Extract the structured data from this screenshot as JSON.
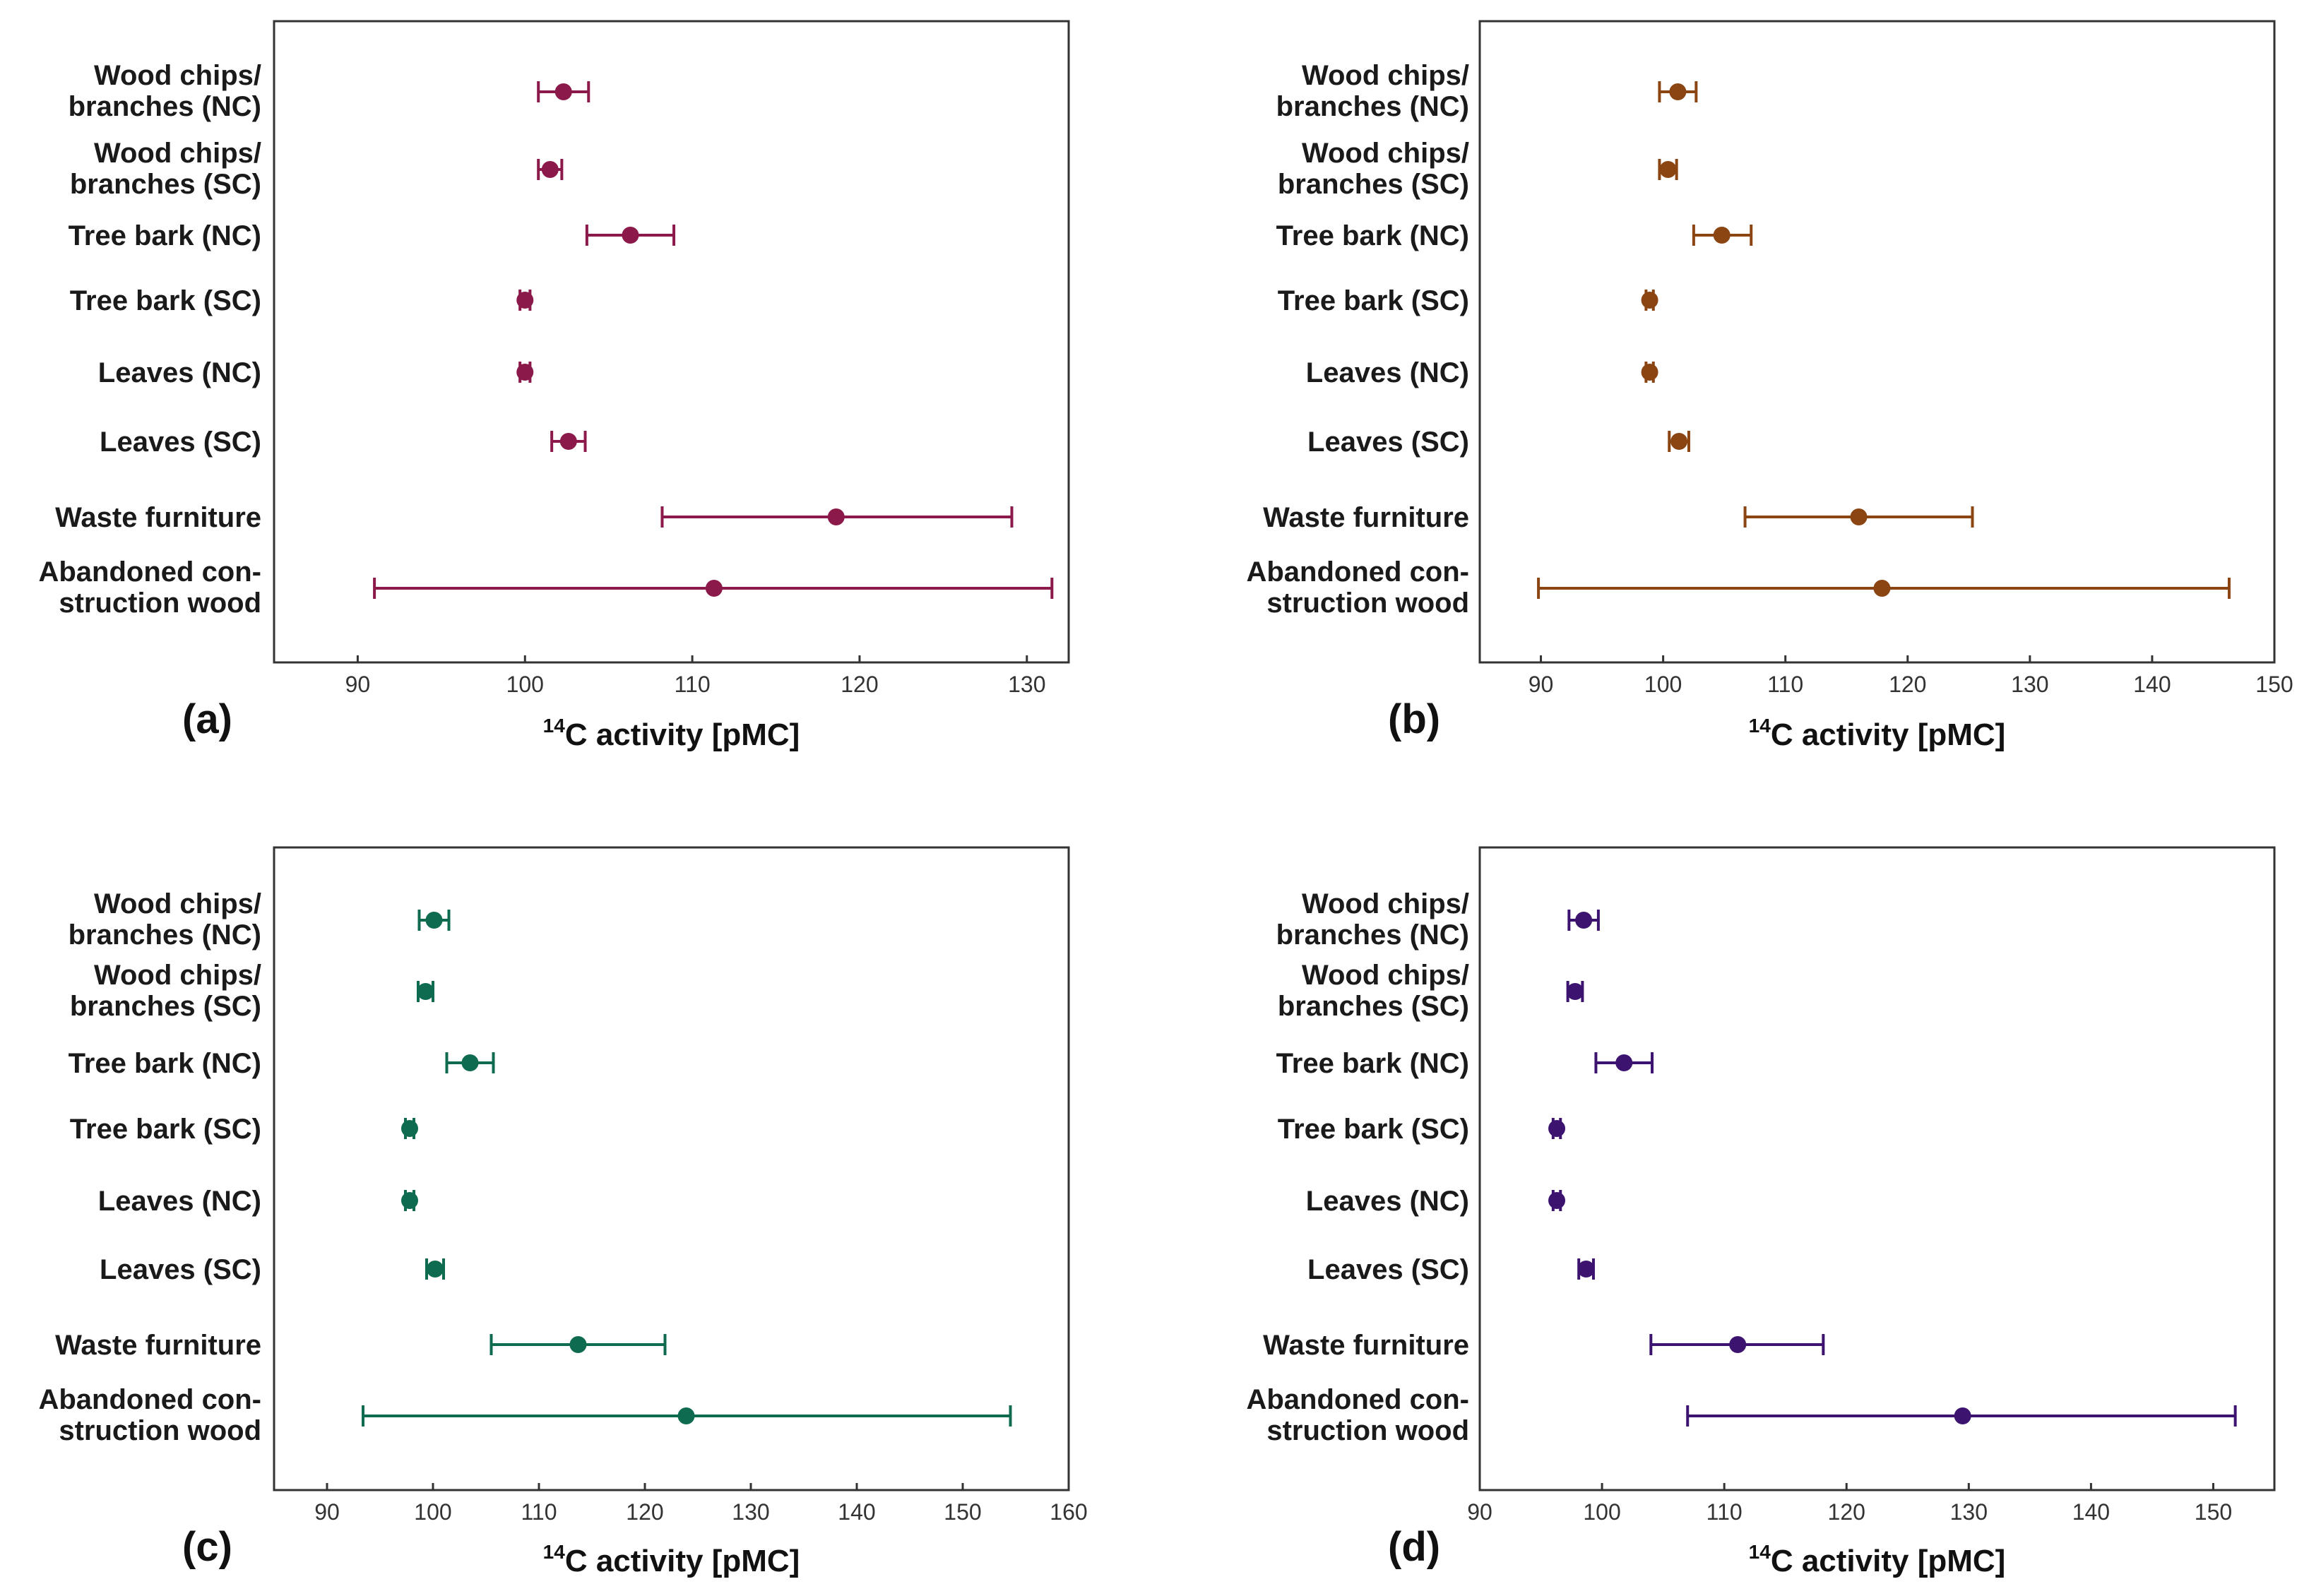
{
  "figure": {
    "categories": [
      [
        "Wood chips/",
        "branches (NC)"
      ],
      [
        "Wood chips/",
        "branches (SC)"
      ],
      [
        "Tree bark (NC)"
      ],
      [
        "Tree bark (SC)"
      ],
      [
        "Leaves (NC)"
      ],
      [
        "Leaves (SC)"
      ],
      [
        "Waste furniture"
      ],
      [
        "Abandoned con-",
        "struction wood"
      ]
    ],
    "xlabel_sup": "14",
    "xlabel_text": "C activity [pMC]"
  },
  "chart_data": [
    {
      "panel": "(a)",
      "type": "scatter",
      "color": "#8B1A4A",
      "xlim": [
        85,
        132.5
      ],
      "xticks": [
        90,
        100,
        110,
        120,
        130
      ],
      "xlabel": "14C activity [pMC]",
      "points": [
        {
          "category": "Wood chips/ branches (NC)",
          "value": 102.3,
          "low": 100.8,
          "high": 103.8
        },
        {
          "category": "Wood chips/ branches (SC)",
          "value": 101.5,
          "low": 100.8,
          "high": 102.2
        },
        {
          "category": "Tree bark (NC)",
          "value": 106.3,
          "low": 103.7,
          "high": 108.9
        },
        {
          "category": "Tree bark (SC)",
          "value": 100.0,
          "low": 99.7,
          "high": 100.3
        },
        {
          "category": "Leaves (NC)",
          "value": 100.0,
          "low": 99.7,
          "high": 100.3
        },
        {
          "category": "Leaves (SC)",
          "value": 102.6,
          "low": 101.6,
          "high": 103.6
        },
        {
          "category": "Waste furniture",
          "value": 118.6,
          "low": 108.2,
          "high": 129.1
        },
        {
          "category": "Abandoned construction wood",
          "value": 111.3,
          "low": 91.0,
          "high": 131.5
        }
      ]
    },
    {
      "panel": "(b)",
      "type": "scatter",
      "color": "#8B4513",
      "xlim": [
        85,
        150
      ],
      "xticks": [
        90,
        100,
        110,
        120,
        130,
        140,
        150
      ],
      "xlabel": "14C activity [pMC]",
      "points": [
        {
          "category": "Wood chips/ branches (NC)",
          "value": 101.2,
          "low": 99.7,
          "high": 102.7
        },
        {
          "category": "Wood chips/ branches (SC)",
          "value": 100.4,
          "low": 99.7,
          "high": 101.1
        },
        {
          "category": "Tree bark (NC)",
          "value": 104.8,
          "low": 102.5,
          "high": 107.2
        },
        {
          "category": "Tree bark (SC)",
          "value": 98.9,
          "low": 98.6,
          "high": 99.2
        },
        {
          "category": "Leaves (NC)",
          "value": 98.9,
          "low": 98.6,
          "high": 99.2
        },
        {
          "category": "Leaves (SC)",
          "value": 101.3,
          "low": 100.5,
          "high": 102.1
        },
        {
          "category": "Waste furniture",
          "value": 116.0,
          "low": 106.7,
          "high": 125.3
        },
        {
          "category": "Abandoned construction wood",
          "value": 117.9,
          "low": 89.8,
          "high": 146.3
        }
      ]
    },
    {
      "panel": "(c)",
      "type": "scatter",
      "color": "#0F6B4F",
      "xlim": [
        85,
        160
      ],
      "xticks": [
        90,
        100,
        110,
        120,
        130,
        140,
        150,
        160
      ],
      "xlabel": "14C activity [pMC]",
      "points": [
        {
          "category": "Wood chips/ branches (NC)",
          "value": 100.1,
          "low": 98.7,
          "high": 101.5
        },
        {
          "category": "Wood chips/ branches (SC)",
          "value": 99.3,
          "low": 98.6,
          "high": 100.0
        },
        {
          "category": "Tree bark (NC)",
          "value": 103.5,
          "low": 101.3,
          "high": 105.7
        },
        {
          "category": "Tree bark (SC)",
          "value": 97.8,
          "low": 97.4,
          "high": 98.2
        },
        {
          "category": "Leaves (NC)",
          "value": 97.8,
          "low": 97.4,
          "high": 98.2
        },
        {
          "category": "Leaves (SC)",
          "value": 100.2,
          "low": 99.4,
          "high": 101.0
        },
        {
          "category": "Waste furniture",
          "value": 113.7,
          "low": 105.5,
          "high": 121.9
        },
        {
          "category": "Abandoned construction wood",
          "value": 123.9,
          "low": 93.4,
          "high": 154.5
        }
      ]
    },
    {
      "panel": "(d)",
      "type": "scatter",
      "color": "#3C1470",
      "xlim": [
        90,
        155
      ],
      "xticks": [
        90,
        100,
        110,
        120,
        130,
        140,
        150
      ],
      "xlabel": "14C activity [pMC]",
      "points": [
        {
          "category": "Wood chips/ branches (NC)",
          "value": 98.5,
          "low": 97.3,
          "high": 99.7
        },
        {
          "category": "Wood chips/ branches (SC)",
          "value": 97.8,
          "low": 97.2,
          "high": 98.4
        },
        {
          "category": "Tree bark (NC)",
          "value": 101.8,
          "low": 99.5,
          "high": 104.1
        },
        {
          "category": "Tree bark (SC)",
          "value": 96.3,
          "low": 96.0,
          "high": 96.6
        },
        {
          "category": "Leaves (NC)",
          "value": 96.3,
          "low": 96.0,
          "high": 96.6
        },
        {
          "category": "Leaves (SC)",
          "value": 98.7,
          "low": 98.1,
          "high": 99.3
        },
        {
          "category": "Waste furniture",
          "value": 111.1,
          "low": 104.0,
          "high": 118.1
        },
        {
          "category": "Abandoned construction wood",
          "value": 129.5,
          "low": 107.0,
          "high": 151.8
        }
      ]
    }
  ]
}
